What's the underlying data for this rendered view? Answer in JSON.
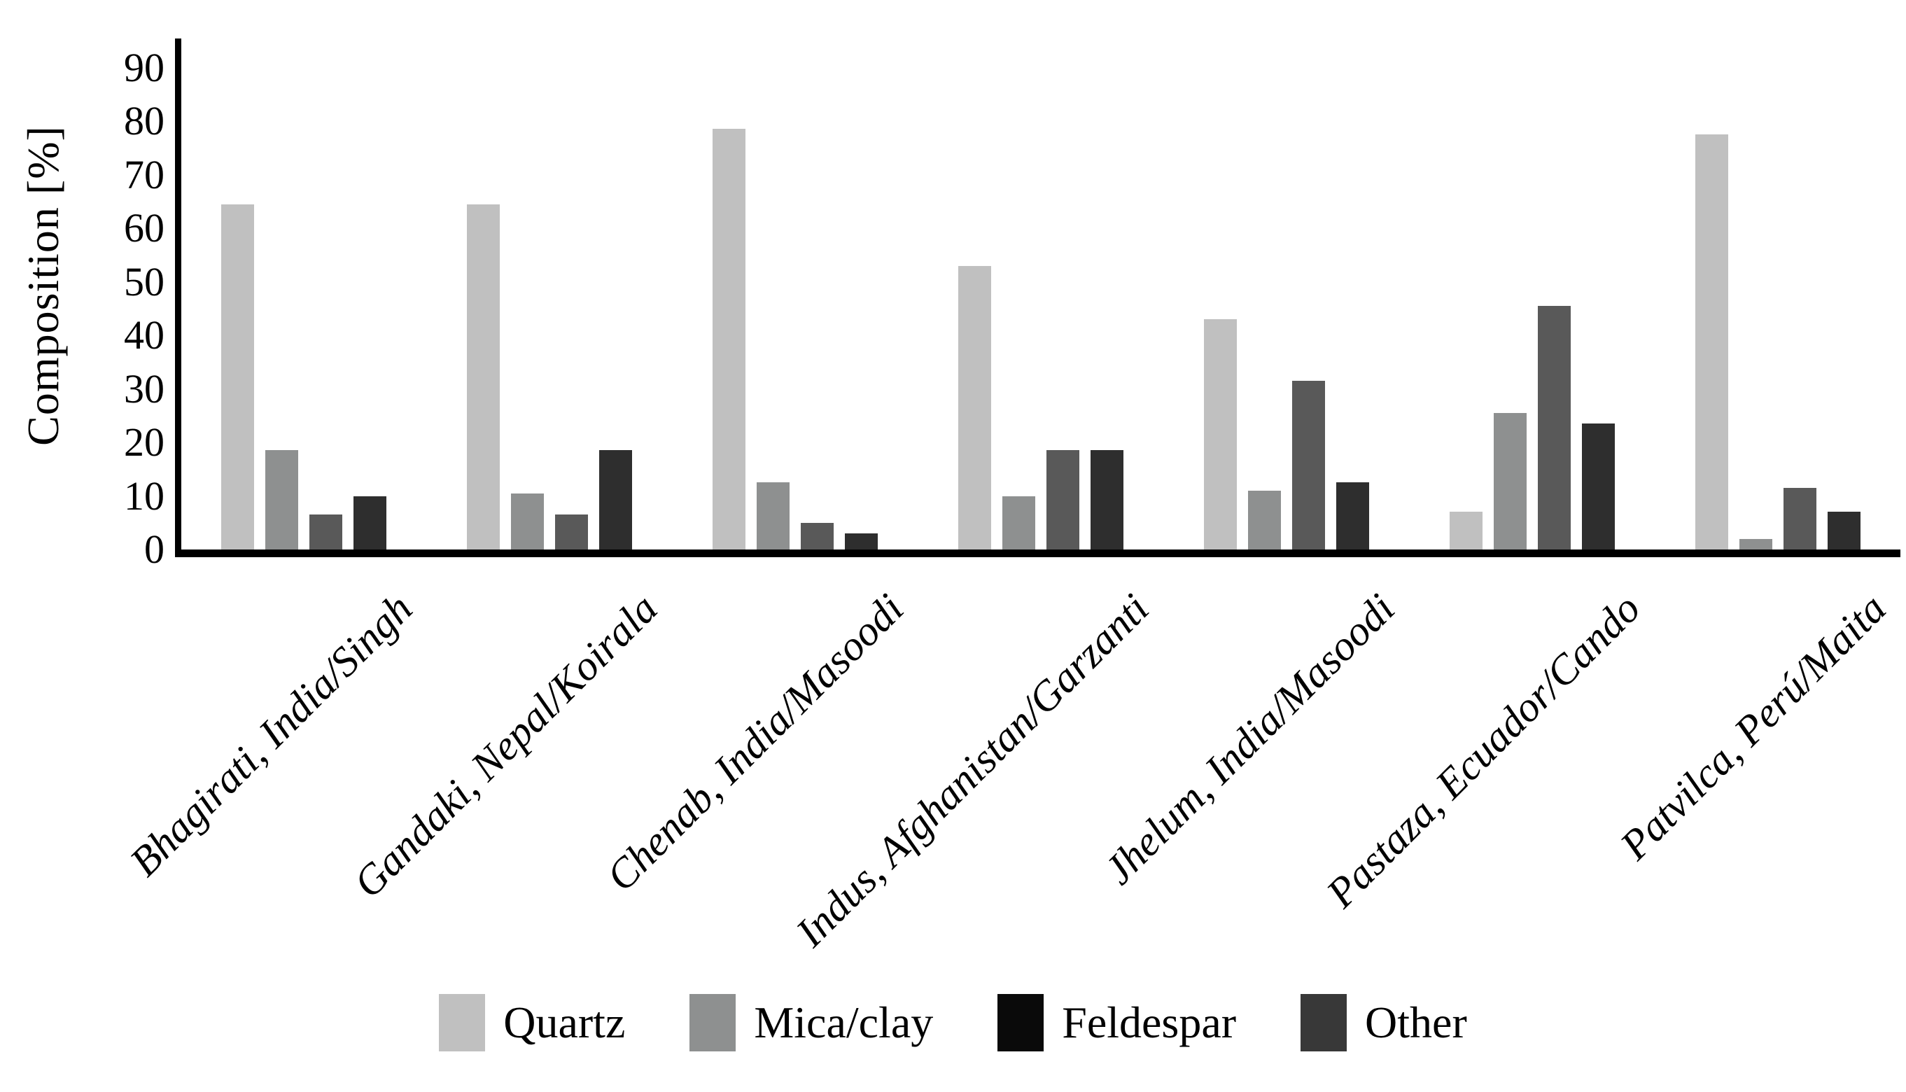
{
  "chart_data": {
    "type": "bar",
    "title": "",
    "xlabel": "",
    "ylabel": "Composition [%]",
    "ylim": [
      0,
      95
    ],
    "yticks": [
      0,
      10,
      20,
      30,
      40,
      50,
      60,
      70,
      80,
      90
    ],
    "grid": false,
    "legend_position": "bottom",
    "background_color": "#ffffff",
    "axis_color": "#000000",
    "categories": [
      "Bhagirati, India/Singh",
      "Gandaki, Nepal/Koirala",
      "Chenab, India/Masoodi",
      "Indus, Afghanistan/Garzanti",
      "Jhelum, India/Masoodi",
      "Pastaza, Ecuador/Cando",
      "Patvilca, Perú/Maita"
    ],
    "series": [
      {
        "name": "Quartz",
        "bar_color": "#c0c0c0",
        "legend_color": "#c0c0c0",
        "values": [
          64.5,
          64.5,
          78.5,
          53,
          43,
          7,
          77.5
        ]
      },
      {
        "name": "Mica/clay",
        "bar_color": "#8e9090",
        "legend_color": "#8e9090",
        "values": [
          18.5,
          10.5,
          12.5,
          10,
          11,
          25.5,
          2
        ]
      },
      {
        "name": "Feldespar",
        "bar_color": "#595959",
        "legend_color": "#0a0a0a",
        "values": [
          6.5,
          6.5,
          5,
          18.5,
          31.5,
          45.5,
          11.5
        ]
      },
      {
        "name": "Other",
        "bar_color": "#2e2e2e",
        "legend_color": "#383838",
        "values": [
          10,
          18.5,
          3,
          18.5,
          12.5,
          23.5,
          7
        ]
      }
    ]
  }
}
